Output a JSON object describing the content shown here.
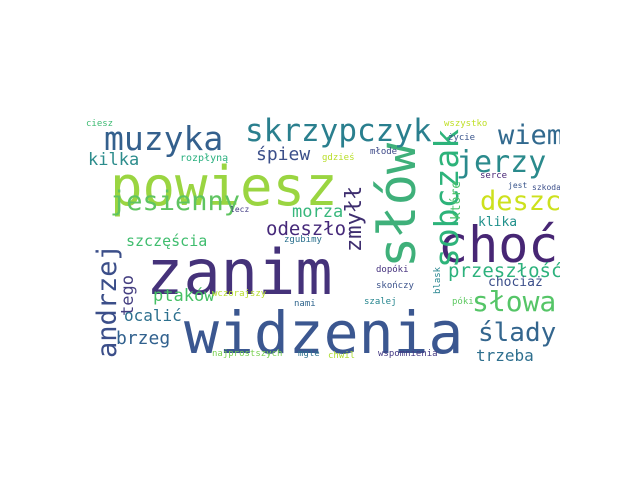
{
  "words": [
    {
      "text": "powiesz",
      "color": "#9ad541"
    },
    {
      "text": "zanim",
      "color": "#45327a"
    },
    {
      "text": "widzenia",
      "color": "#3b5790"
    },
    {
      "text": "słów",
      "color": "#3fb07a"
    },
    {
      "text": "choć",
      "color": "#472674"
    },
    {
      "text": "skrzypczyk",
      "color": "#2a7f8e"
    },
    {
      "text": "muzyka",
      "color": "#34608d"
    },
    {
      "text": "sobczak",
      "color": "#2db37a"
    },
    {
      "text": "jerzy",
      "color": "#2a8a8c"
    },
    {
      "text": "jesienny",
      "color": "#5fc461"
    },
    {
      "text": "andrzej",
      "color": "#3b4e89"
    },
    {
      "text": "deszcz",
      "color": "#cde11d"
    },
    {
      "text": "wiem",
      "color": "#31698e"
    },
    {
      "text": "słowa",
      "color": "#55c567"
    },
    {
      "text": "ślady",
      "color": "#34668e"
    },
    {
      "text": "zmyłł",
      "color": "#3e2e6f"
    },
    {
      "text": "odeszło",
      "color": "#46297a"
    },
    {
      "text": "morza",
      "color": "#38b77c"
    },
    {
      "text": "przeszłość",
      "color": "#2db27d"
    },
    {
      "text": "ptaków",
      "color": "#46c065"
    },
    {
      "text": "śpiew",
      "color": "#3b4f8a"
    },
    {
      "text": "kilka",
      "color": "#2c8c8c"
    },
    {
      "text": "szczęścia",
      "color": "#3fbd6e"
    },
    {
      "text": "tego",
      "color": "#453f81"
    },
    {
      "text": "brzeg",
      "color": "#31618e"
    },
    {
      "text": "ocalić",
      "color": "#2d708e"
    },
    {
      "text": "trzeba",
      "color": "#2e6f8e"
    },
    {
      "text": "klika",
      "color": "#21918c"
    },
    {
      "text": "które",
      "color": "#4dc36b"
    },
    {
      "text": "chociaż",
      "color": "#3c4f8a"
    },
    {
      "text": "rozpłyną",
      "color": "#2ab07f"
    },
    {
      "text": "ciesz",
      "color": "#3ebb73"
    },
    {
      "text": "wszystko",
      "color": "#bfdf25"
    },
    {
      "text": "życie",
      "color": "#3a558c"
    },
    {
      "text": "serce",
      "color": "#482575"
    },
    {
      "text": "jest",
      "color": "#39568c"
    },
    {
      "text": "szkoda",
      "color": "#3c4f8a"
    },
    {
      "text": "młode",
      "color": "#3e4a89"
    },
    {
      "text": "gdzieś",
      "color": "#b8de29"
    },
    {
      "text": "lecz",
      "color": "#433d84"
    },
    {
      "text": "zgubimy",
      "color": "#2c718e"
    },
    {
      "text": "dopóki",
      "color": "#46327e"
    },
    {
      "text": "skończy",
      "color": "#3b528b"
    },
    {
      "text": "blask",
      "color": "#25848e"
    },
    {
      "text": "wczorajszy",
      "color": "#b5de2b"
    },
    {
      "text": "nami",
      "color": "#31668e"
    },
    {
      "text": "szalej",
      "color": "#25858e"
    },
    {
      "text": "póki",
      "color": "#5ec962"
    },
    {
      "text": "najprostszych",
      "color": "#7ad151"
    },
    {
      "text": "mgle",
      "color": "#2d708e"
    },
    {
      "text": "chwil",
      "color": "#addc30"
    },
    {
      "text": "wspomnienia",
      "color": "#443983"
    }
  ]
}
